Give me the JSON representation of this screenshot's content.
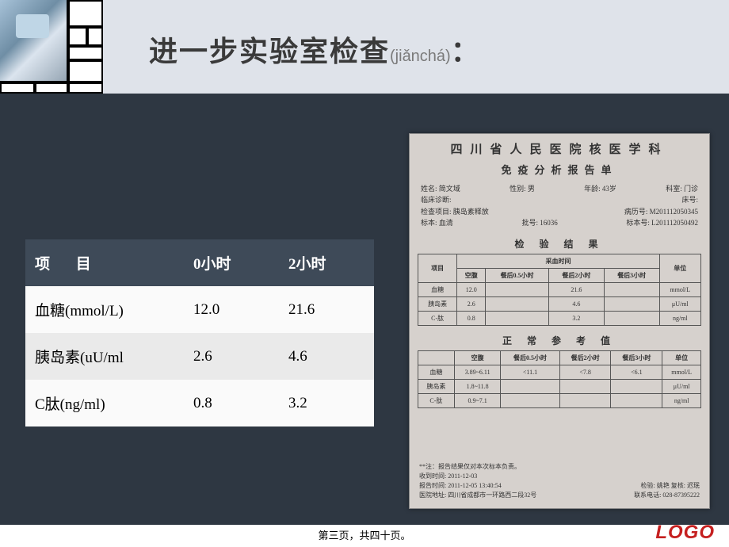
{
  "title": {
    "main": "进一步实验室检查",
    "pinyin": "(jiǎnchá)",
    "colon": "："
  },
  "table": {
    "columns": [
      "项  目",
      "0小时",
      "2小时"
    ],
    "rows": [
      {
        "label": "血糖(mmol/L)",
        "c0": "12.0",
        "c2": "21.6"
      },
      {
        "label": "胰岛素(uU/ml",
        "c0": "2.6",
        "c2": "4.6"
      },
      {
        "label": "C肽(ng/ml)",
        "c0": "0.8",
        "c2": "3.2"
      }
    ],
    "header_bg": "#3e4a58",
    "header_fg": "#ffffff",
    "row_odd_bg": "#fafafa",
    "row_even_bg": "#eaeaea",
    "font_size": 19
  },
  "report": {
    "heading1": "四川省人民医院核医学科",
    "heading2": "免疫分析报告单",
    "info": {
      "name_label": "姓名:",
      "name": "简文域",
      "sex_label": "性别:",
      "sex": "男",
      "age_label": "年龄:",
      "age": "43岁",
      "dept_label": "科室:",
      "dept": "门诊",
      "diag_label": "临床诊断:",
      "bed_label": "床号:",
      "proj_label": "检查项目:",
      "proj": "胰岛素释放",
      "case_label": "病历号:",
      "case": "M201112050345",
      "sample_label": "标本:",
      "sample": "血清",
      "batch_label": "批号:",
      "batch": "16036",
      "spec_label": "标本号:",
      "spec": "L201112050492"
    },
    "section_result": "检  验  结  果",
    "result_table": {
      "top_header": "采血时间",
      "rowhead": "项目",
      "unit": "单位",
      "cols": [
        "空腹",
        "餐后0.5小时",
        "餐后2小时",
        "餐后3小时"
      ],
      "rows": [
        {
          "n": "血糖",
          "v": [
            "12.0",
            "",
            "21.6",
            ""
          ],
          "u": "mmol/L"
        },
        {
          "n": "胰岛素",
          "v": [
            "2.6",
            "",
            "4.6",
            ""
          ],
          "u": "μU/ml"
        },
        {
          "n": "C-肽",
          "v": [
            "0.8",
            "",
            "3.2",
            ""
          ],
          "u": "ng/ml"
        }
      ]
    },
    "section_ref": "正  常  参  考  值",
    "ref_table": {
      "cols": [
        "空腹",
        "餐后0.5小时",
        "餐后2小时",
        "餐后3小时"
      ],
      "unit": "单位",
      "rows": [
        {
          "n": "血糖",
          "v": [
            "3.89~6.11",
            "<11.1",
            "<7.8",
            "<6.1"
          ],
          "u": "mmol/L"
        },
        {
          "n": "胰岛素",
          "v": [
            "1.8~11.8",
            "",
            "",
            ""
          ],
          "u": "μU/ml"
        },
        {
          "n": "C-肽",
          "v": [
            "0.9~7.1",
            "",
            "",
            ""
          ],
          "u": "ng/ml"
        }
      ]
    },
    "footer": {
      "note": "**注：报告结果仅对本次标本负责。",
      "recv": "收到时间: 2011-12-03",
      "rpt": "报告时间: 2011-12-05 13:40:54",
      "addr": "医院地址: 四川省成都市一环路西二段32号",
      "checker": "检验: 姚艳  复核: 迟珉",
      "tel": "联系电话: 028-87395222"
    }
  },
  "page_footer": "第三页，共四十页。",
  "logo": "LOGO",
  "colors": {
    "header_band": "#dfe3ea",
    "content_band": "#2e3742",
    "logo": "#c52020"
  }
}
